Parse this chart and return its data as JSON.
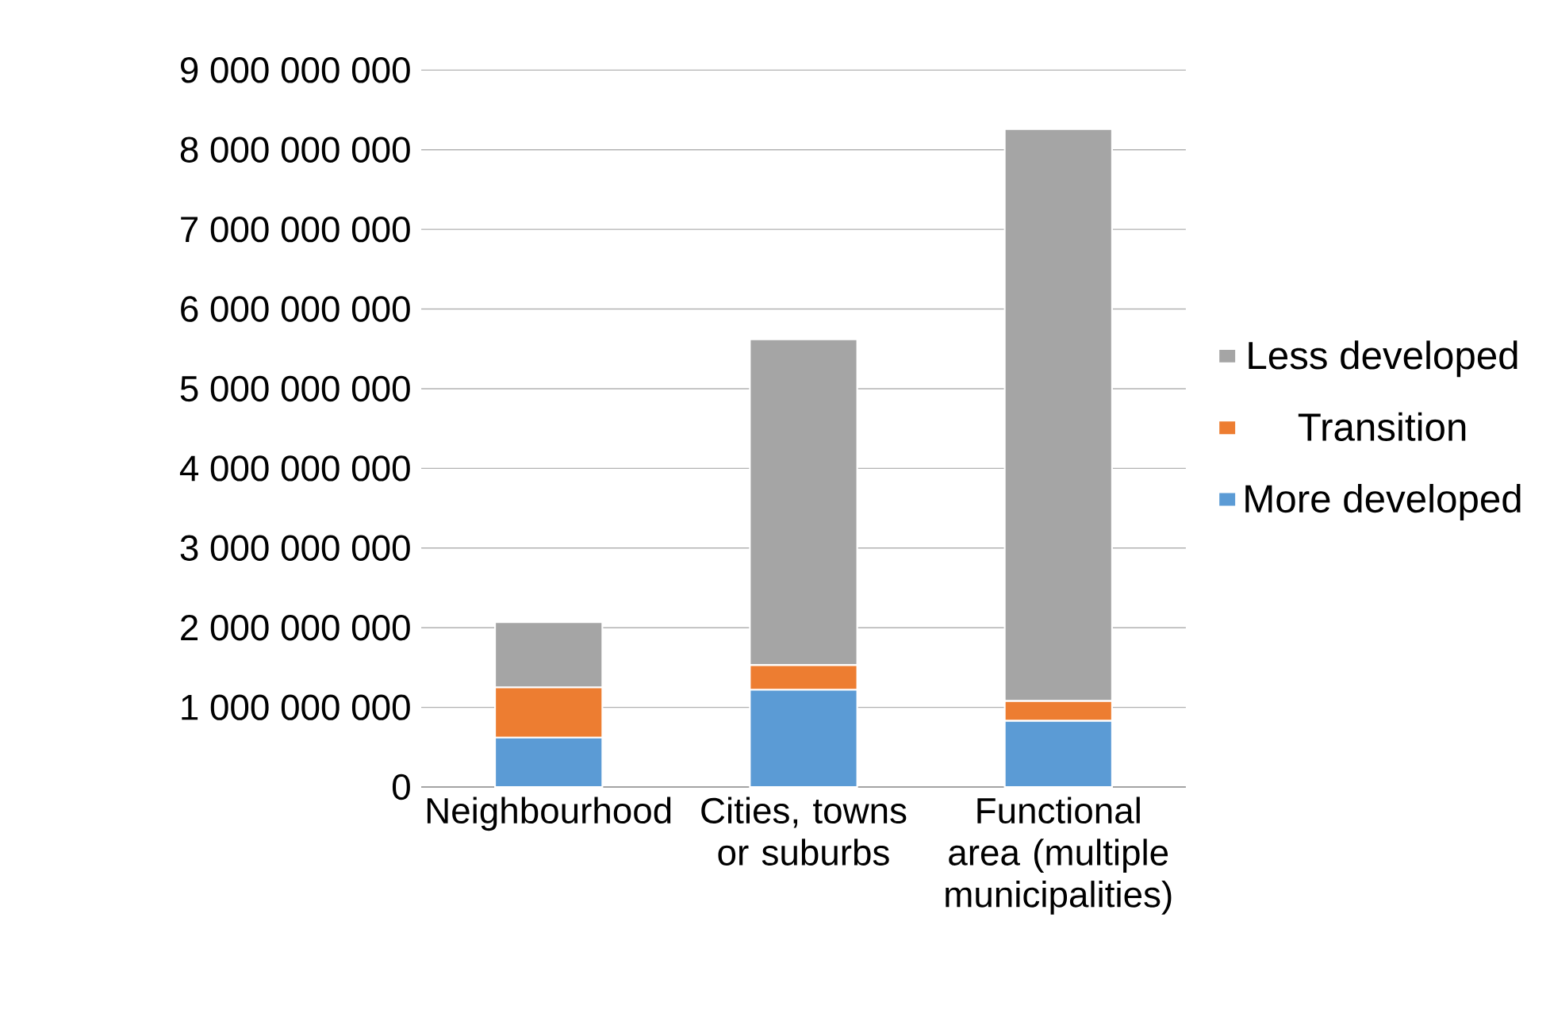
{
  "chart_data": {
    "type": "bar",
    "stacked": true,
    "categories": [
      "Neighbourhood",
      "Cities, towns or suburbs",
      "Functional area (multiple municipalities)"
    ],
    "series": [
      {
        "name": "More developed",
        "color": "#5b9bd5",
        "values": [
          620000000,
          1220000000,
          830000000
        ]
      },
      {
        "name": "Transition",
        "color": "#ed7d31",
        "values": [
          630000000,
          310000000,
          250000000
        ]
      },
      {
        "name": "Less developed",
        "color": "#a5a5a5",
        "values": [
          820000000,
          4090000000,
          7180000000
        ]
      }
    ],
    "ylim": [
      0,
      9000000000
    ],
    "yticks": [
      {
        "value": 0,
        "label": "0"
      },
      {
        "value": 1000000000,
        "label": "1 000 000 000"
      },
      {
        "value": 2000000000,
        "label": "2 000 000 000"
      },
      {
        "value": 3000000000,
        "label": "3 000 000 000"
      },
      {
        "value": 4000000000,
        "label": "4 000 000 000"
      },
      {
        "value": 5000000000,
        "label": "5 000 000 000"
      },
      {
        "value": 6000000000,
        "label": "6 000 000 000"
      },
      {
        "value": 7000000000,
        "label": "7 000 000 000"
      },
      {
        "value": 8000000000,
        "label": "8 000 000 000"
      },
      {
        "value": 9000000000,
        "label": "9 000 000 000"
      }
    ],
    "grid": "y",
    "legend": "right"
  }
}
